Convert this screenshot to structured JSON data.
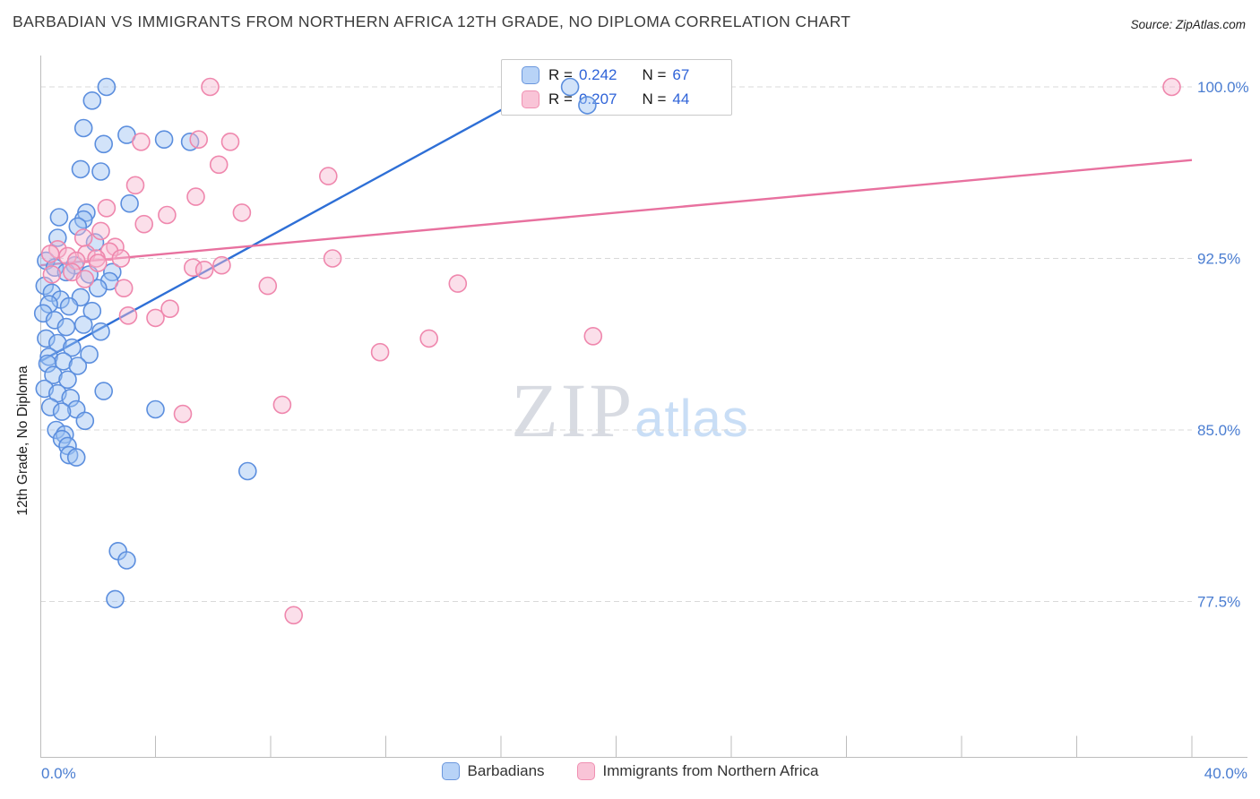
{
  "header": {
    "title": "BARBADIAN VS IMMIGRANTS FROM NORTHERN AFRICA 12TH GRADE, NO DIPLOMA CORRELATION CHART",
    "source_prefix": "Source:",
    "source": "ZipAtlas.com"
  },
  "watermark": {
    "zip": "ZIP",
    "atlas": "atlas"
  },
  "stats_box": {
    "rows": [
      {
        "series": "Barbadians",
        "r_label": "R =",
        "r": "0.242",
        "n_label": "N =",
        "n": "67"
      },
      {
        "series": "Immigrants from Northern Africa",
        "r_label": "R =",
        "r": "0.207",
        "n_label": "N =",
        "n": "44"
      }
    ]
  },
  "y_axis": {
    "title": "12th Grade, No Diploma",
    "tick_labels": [
      "100.0%",
      "92.5%",
      "85.0%",
      "77.5%"
    ],
    "tick_values": [
      100,
      92.5,
      85,
      77.5
    ]
  },
  "x_axis": {
    "min_label": "0.0%",
    "max_label": "40.0%",
    "min": 0,
    "max": 40,
    "tick_step": 4
  },
  "legend": [
    {
      "label": "Barbadians",
      "fill": "#b8d3f7",
      "stroke": "#6b97dd"
    },
    {
      "label": "Immigrants from Northern Africa",
      "fill": "#f9c4d7",
      "stroke": "#f090b2"
    }
  ],
  "colors": {
    "axis_label": "#4a7dd1",
    "accent_blue": "#2f63d8",
    "grid": "#d9d9d9",
    "axis": "#bdbdbd",
    "trend_blue": "#2e6fd6",
    "trend_pink": "#e8719f"
  },
  "chart_data": {
    "type": "scatter",
    "title": "Barbadian vs Immigrants from Northern Africa 12th Grade, No Diploma correlation",
    "xlabel": "",
    "ylabel": "12th Grade, No Diploma",
    "x_range": [
      0,
      40
    ],
    "y_range": [
      70,
      101
    ],
    "y_gridlines": [
      100,
      92.5,
      85,
      77.5
    ],
    "legend_position": "bottom",
    "grid": "dashed-horizontal",
    "series": [
      {
        "name": "Barbadians",
        "key": "barbadians",
        "color": "#5b8ede",
        "fill": "#9cc2f2",
        "r": "0.242",
        "n": 67,
        "points": [
          [
            2.3,
            100.0
          ],
          [
            18.4,
            100.0
          ],
          [
            1.8,
            99.4
          ],
          [
            19.0,
            99.2
          ],
          [
            1.5,
            98.2
          ],
          [
            3.0,
            97.9
          ],
          [
            4.3,
            97.7
          ],
          [
            5.2,
            97.6
          ],
          [
            2.2,
            97.5
          ],
          [
            1.4,
            96.4
          ],
          [
            2.1,
            96.3
          ],
          [
            3.1,
            94.9
          ],
          [
            1.6,
            94.5
          ],
          [
            0.65,
            94.3
          ],
          [
            1.5,
            94.2
          ],
          [
            1.3,
            93.9
          ],
          [
            0.6,
            93.4
          ],
          [
            1.9,
            93.2
          ],
          [
            0.2,
            92.4
          ],
          [
            1.2,
            92.2
          ],
          [
            0.5,
            92.1
          ],
          [
            0.9,
            91.9
          ],
          [
            2.5,
            91.9
          ],
          [
            1.7,
            91.8
          ],
          [
            2.4,
            91.5
          ],
          [
            0.15,
            91.3
          ],
          [
            2.0,
            91.2
          ],
          [
            0.4,
            91.0
          ],
          [
            1.4,
            90.8
          ],
          [
            0.7,
            90.7
          ],
          [
            0.3,
            90.5
          ],
          [
            1.0,
            90.4
          ],
          [
            1.8,
            90.2
          ],
          [
            0.1,
            90.1
          ],
          [
            0.5,
            89.8
          ],
          [
            1.5,
            89.6
          ],
          [
            0.9,
            89.5
          ],
          [
            2.1,
            89.3
          ],
          [
            0.2,
            89.0
          ],
          [
            0.6,
            88.8
          ],
          [
            1.1,
            88.6
          ],
          [
            1.7,
            88.3
          ],
          [
            0.3,
            88.2
          ],
          [
            0.8,
            88.0
          ],
          [
            0.25,
            87.9
          ],
          [
            1.3,
            87.8
          ],
          [
            0.45,
            87.4
          ],
          [
            0.95,
            87.2
          ],
          [
            0.15,
            86.8
          ],
          [
            2.2,
            86.7
          ],
          [
            0.6,
            86.6
          ],
          [
            1.05,
            86.4
          ],
          [
            0.35,
            86.0
          ],
          [
            1.25,
            85.9
          ],
          [
            4.0,
            85.9
          ],
          [
            0.75,
            85.8
          ],
          [
            1.55,
            85.4
          ],
          [
            0.55,
            85.0
          ],
          [
            0.85,
            84.8
          ],
          [
            0.75,
            84.6
          ],
          [
            0.95,
            84.3
          ],
          [
            1.0,
            83.9
          ],
          [
            1.25,
            83.8
          ],
          [
            7.2,
            83.2
          ],
          [
            2.7,
            79.7
          ],
          [
            3.0,
            79.3
          ],
          [
            2.6,
            77.6
          ]
        ]
      },
      {
        "name": "Immigrants from Northern Africa",
        "key": "northern-africa",
        "color": "#ef87ad",
        "fill": "#f7b9d0",
        "r": "0.207",
        "n": 44,
        "points": [
          [
            5.9,
            100.0
          ],
          [
            39.3,
            100.0
          ],
          [
            5.5,
            97.7
          ],
          [
            3.5,
            97.6
          ],
          [
            6.6,
            97.6
          ],
          [
            6.2,
            96.6
          ],
          [
            10.0,
            96.1
          ],
          [
            3.3,
            95.7
          ],
          [
            5.4,
            95.2
          ],
          [
            2.3,
            94.7
          ],
          [
            7.0,
            94.5
          ],
          [
            4.4,
            94.4
          ],
          [
            3.6,
            94.0
          ],
          [
            2.1,
            93.7
          ],
          [
            1.5,
            93.4
          ],
          [
            2.6,
            93.0
          ],
          [
            0.6,
            92.9
          ],
          [
            2.4,
            92.8
          ],
          [
            0.35,
            92.7
          ],
          [
            1.6,
            92.7
          ],
          [
            0.95,
            92.6
          ],
          [
            1.95,
            92.5
          ],
          [
            2.8,
            92.5
          ],
          [
            10.15,
            92.5
          ],
          [
            1.25,
            92.4
          ],
          [
            2.0,
            92.3
          ],
          [
            6.3,
            92.2
          ],
          [
            5.3,
            92.1
          ],
          [
            5.7,
            92.0
          ],
          [
            1.1,
            91.9
          ],
          [
            0.4,
            91.8
          ],
          [
            1.55,
            91.6
          ],
          [
            14.5,
            91.4
          ],
          [
            7.9,
            91.3
          ],
          [
            2.9,
            91.2
          ],
          [
            4.5,
            90.3
          ],
          [
            3.05,
            90.0
          ],
          [
            4.0,
            89.9
          ],
          [
            19.2,
            89.1
          ],
          [
            13.5,
            89.0
          ],
          [
            11.8,
            88.4
          ],
          [
            8.4,
            86.1
          ],
          [
            4.95,
            85.7
          ],
          [
            8.8,
            76.9
          ]
        ]
      }
    ],
    "trendlines": [
      {
        "series": "Barbadians",
        "color": "#2e6fd6",
        "x1": 0,
        "y1": 88.0,
        "x2": 18.5,
        "y2": 100.7
      },
      {
        "series": "Immigrants from Northern Africa",
        "color": "#e8719f",
        "x1": 0,
        "y1": 92.2,
        "x2": 40,
        "y2": 96.8
      }
    ]
  }
}
